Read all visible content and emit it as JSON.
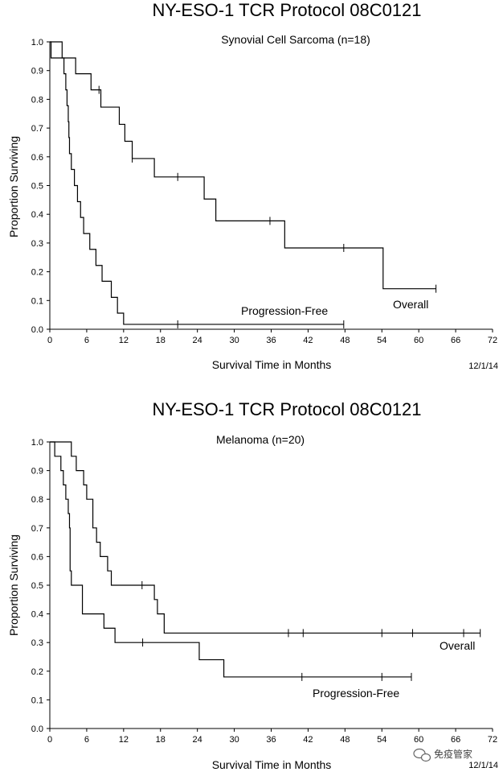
{
  "chart_data": [
    {
      "type": "line",
      "title": "NY-ESO-1 TCR Protocol 08C0121",
      "subtitle": "Synovial Cell Sarcoma (n=18)",
      "xlabel": "Survival Time in Months",
      "ylabel": "Proportion Surviving",
      "date": "12/1/14",
      "xlim": [
        0,
        72
      ],
      "ylim": [
        0,
        1
      ],
      "xticks": [
        "0",
        "6",
        "12",
        "18",
        "24",
        "30",
        "36",
        "42",
        "48",
        "54",
        "60",
        "66",
        "72"
      ],
      "yticks": [
        "0.0",
        "0.1",
        "0.2",
        "0.3",
        "0.4",
        "0.5",
        "0.6",
        "0.7",
        "0.8",
        "0.9",
        "1.0"
      ],
      "series": [
        {
          "name": "Overall",
          "steps": [
            [
              0,
              1.0
            ],
            [
              0.2,
              0.944
            ],
            [
              4.2,
              0.889
            ],
            [
              6.7,
              0.833
            ],
            [
              8.3,
              0.773
            ],
            [
              11.3,
              0.713
            ],
            [
              12.2,
              0.654
            ],
            [
              13.4,
              0.594
            ],
            [
              17.0,
              0.53
            ],
            [
              25.1,
              0.453
            ],
            [
              27.0,
              0.377
            ],
            [
              38.2,
              0.283
            ],
            [
              54.2,
              0.141
            ],
            [
              62.8,
              0.141
            ]
          ],
          "censored": [
            [
              8.0,
              0.833
            ],
            [
              13.4,
              0.594
            ],
            [
              20.8,
              0.53
            ],
            [
              35.8,
              0.377
            ],
            [
              47.8,
              0.283
            ],
            [
              62.8,
              0.141
            ]
          ]
        },
        {
          "name": "Progression-Free",
          "steps": [
            [
              0,
              1.0
            ],
            [
              2.0,
              0.944
            ],
            [
              2.3,
              0.889
            ],
            [
              2.6,
              0.833
            ],
            [
              2.8,
              0.778
            ],
            [
              3.0,
              0.722
            ],
            [
              3.1,
              0.667
            ],
            [
              3.2,
              0.611
            ],
            [
              3.5,
              0.556
            ],
            [
              4.0,
              0.5
            ],
            [
              4.5,
              0.444
            ],
            [
              5.0,
              0.389
            ],
            [
              5.5,
              0.333
            ],
            [
              6.5,
              0.278
            ],
            [
              7.5,
              0.222
            ],
            [
              8.5,
              0.167
            ],
            [
              10.0,
              0.111
            ],
            [
              11.0,
              0.056
            ],
            [
              12.0,
              0.017
            ],
            [
              13.0,
              0.017
            ],
            [
              47.8,
              0.017
            ]
          ],
          "censored": [
            [
              20.8,
              0.017
            ],
            [
              47.8,
              0.017
            ]
          ]
        }
      ]
    },
    {
      "type": "line",
      "title": "NY-ESO-1 TCR Protocol 08C0121",
      "subtitle": "Melanoma (n=20)",
      "xlabel": "Survival Time in Months",
      "ylabel": "Proportion Surviving",
      "date": "12/1/14",
      "xlim": [
        0,
        72
      ],
      "ylim": [
        0,
        1
      ],
      "xticks": [
        "0",
        "6",
        "12",
        "18",
        "24",
        "30",
        "36",
        "42",
        "48",
        "54",
        "60",
        "66",
        "72"
      ],
      "yticks": [
        "0.0",
        "0.1",
        "0.2",
        "0.3",
        "0.4",
        "0.5",
        "0.6",
        "0.7",
        "0.8",
        "0.9",
        "1.0"
      ],
      "series": [
        {
          "name": "Overall",
          "steps": [
            [
              0,
              1.0
            ],
            [
              3.5,
              0.95
            ],
            [
              4.3,
              0.9
            ],
            [
              5.5,
              0.85
            ],
            [
              6.0,
              0.8
            ],
            [
              7.0,
              0.7
            ],
            [
              7.6,
              0.65
            ],
            [
              8.2,
              0.6
            ],
            [
              9.4,
              0.55
            ],
            [
              10.0,
              0.5
            ],
            [
              17.0,
              0.45
            ],
            [
              17.5,
              0.4
            ],
            [
              18.6,
              0.333
            ],
            [
              70.0,
              0.333
            ]
          ],
          "censored": [
            [
              15.0,
              0.5
            ],
            [
              38.8,
              0.333
            ],
            [
              41.2,
              0.333
            ],
            [
              54.0,
              0.333
            ],
            [
              59.0,
              0.333
            ],
            [
              67.3,
              0.333
            ],
            [
              70.0,
              0.333
            ]
          ]
        },
        {
          "name": "Progression-Free",
          "steps": [
            [
              0,
              1.0
            ],
            [
              0.8,
              0.95
            ],
            [
              1.8,
              0.9
            ],
            [
              2.2,
              0.85
            ],
            [
              2.6,
              0.8
            ],
            [
              3.0,
              0.75
            ],
            [
              3.2,
              0.7
            ],
            [
              3.3,
              0.55
            ],
            [
              3.5,
              0.5
            ],
            [
              5.3,
              0.4
            ],
            [
              8.8,
              0.35
            ],
            [
              10.6,
              0.3
            ],
            [
              24.3,
              0.24
            ],
            [
              28.3,
              0.18
            ],
            [
              58.8,
              0.18
            ]
          ],
          "censored": [
            [
              15.1,
              0.3
            ],
            [
              41.0,
              0.18
            ],
            [
              54.0,
              0.18
            ],
            [
              58.8,
              0.18
            ]
          ]
        }
      ]
    }
  ],
  "watermark": "免疫管家",
  "watermark_icon": "wechat-icon"
}
